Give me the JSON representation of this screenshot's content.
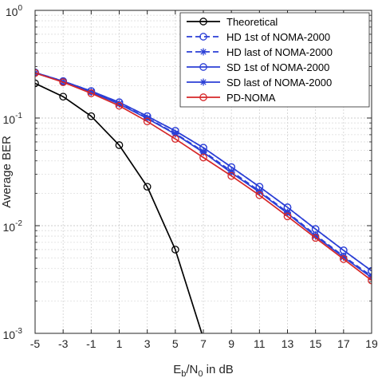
{
  "chart_data": {
    "type": "line",
    "xlabel": {
      "base": "E",
      "sub1": "b",
      "mid": "/N",
      "sub2": "0",
      "tail": " in dB"
    },
    "ylabel": "Average BER",
    "x_ticks": [
      -5,
      -3,
      -1,
      1,
      3,
      5,
      7,
      9,
      11,
      13,
      15,
      17,
      19
    ],
    "y_scale": "log",
    "y_ticks": [
      {
        "value": 0.001,
        "base": "10",
        "exp": "-3"
      },
      {
        "value": 0.01,
        "base": "10",
        "exp": "-2"
      },
      {
        "value": 0.1,
        "base": "10",
        "exp": "-1"
      },
      {
        "value": 1,
        "base": "10",
        "exp": "0"
      }
    ],
    "xlim": [
      -5,
      19
    ],
    "ylim": [
      0.001,
      1
    ],
    "grid": true,
    "legend_position": "top-right",
    "series": [
      {
        "name": "Theoretical",
        "color": "#000000",
        "dash": "solid",
        "marker": "circle",
        "x": [
          -5,
          -3,
          -1,
          1,
          3,
          5,
          7
        ],
        "y": [
          0.21,
          0.158,
          0.104,
          0.056,
          0.023,
          0.006,
          0.0009
        ]
      },
      {
        "name": "HD 1st of NOMA-2000",
        "color": "#2b3fd6",
        "dash": "dashed",
        "marker": "circle",
        "x": [
          -5,
          -3,
          -1,
          1,
          3,
          5,
          7,
          9,
          11,
          13,
          15,
          17,
          19
        ],
        "y": [
          0.265,
          0.22,
          0.178,
          0.14,
          0.104,
          0.076,
          0.053,
          0.035,
          0.023,
          0.0148,
          0.0093,
          0.0059,
          0.0038
        ]
      },
      {
        "name": "HD last of NOMA-2000",
        "color": "#2b3fd6",
        "dash": "dashed",
        "marker": "star",
        "x": [
          -5,
          -3,
          -1,
          1,
          3,
          5,
          7,
          9,
          11,
          13,
          15,
          17,
          19
        ],
        "y": [
          0.262,
          0.217,
          0.175,
          0.136,
          0.1,
          0.072,
          0.049,
          0.032,
          0.021,
          0.0133,
          0.0082,
          0.0052,
          0.0034
        ]
      },
      {
        "name": "SD 1st of NOMA-2000",
        "color": "#2b3fd6",
        "dash": "solid",
        "marker": "circle",
        "x": [
          -5,
          -3,
          -1,
          1,
          3,
          5,
          7,
          9,
          11,
          13,
          15,
          17,
          19
        ],
        "y": [
          0.265,
          0.22,
          0.178,
          0.14,
          0.104,
          0.076,
          0.053,
          0.035,
          0.023,
          0.0148,
          0.0093,
          0.0059,
          0.0038
        ]
      },
      {
        "name": "SD last of NOMA-2000",
        "color": "#2b3fd6",
        "dash": "solid",
        "marker": "star",
        "x": [
          -5,
          -3,
          -1,
          1,
          3,
          5,
          7,
          9,
          11,
          13,
          15,
          17,
          19
        ],
        "y": [
          0.262,
          0.217,
          0.174,
          0.135,
          0.099,
          0.071,
          0.048,
          0.031,
          0.0205,
          0.013,
          0.008,
          0.0051,
          0.0033
        ]
      },
      {
        "name": "PD-NOMA",
        "color": "#d62728",
        "dash": "solid",
        "marker": "circle",
        "x": [
          -5,
          -3,
          -1,
          1,
          3,
          5,
          7,
          9,
          11,
          13,
          15,
          17,
          19
        ],
        "y": [
          0.262,
          0.215,
          0.17,
          0.13,
          0.093,
          0.064,
          0.043,
          0.029,
          0.0192,
          0.0122,
          0.0077,
          0.0049,
          0.0031
        ]
      }
    ]
  }
}
